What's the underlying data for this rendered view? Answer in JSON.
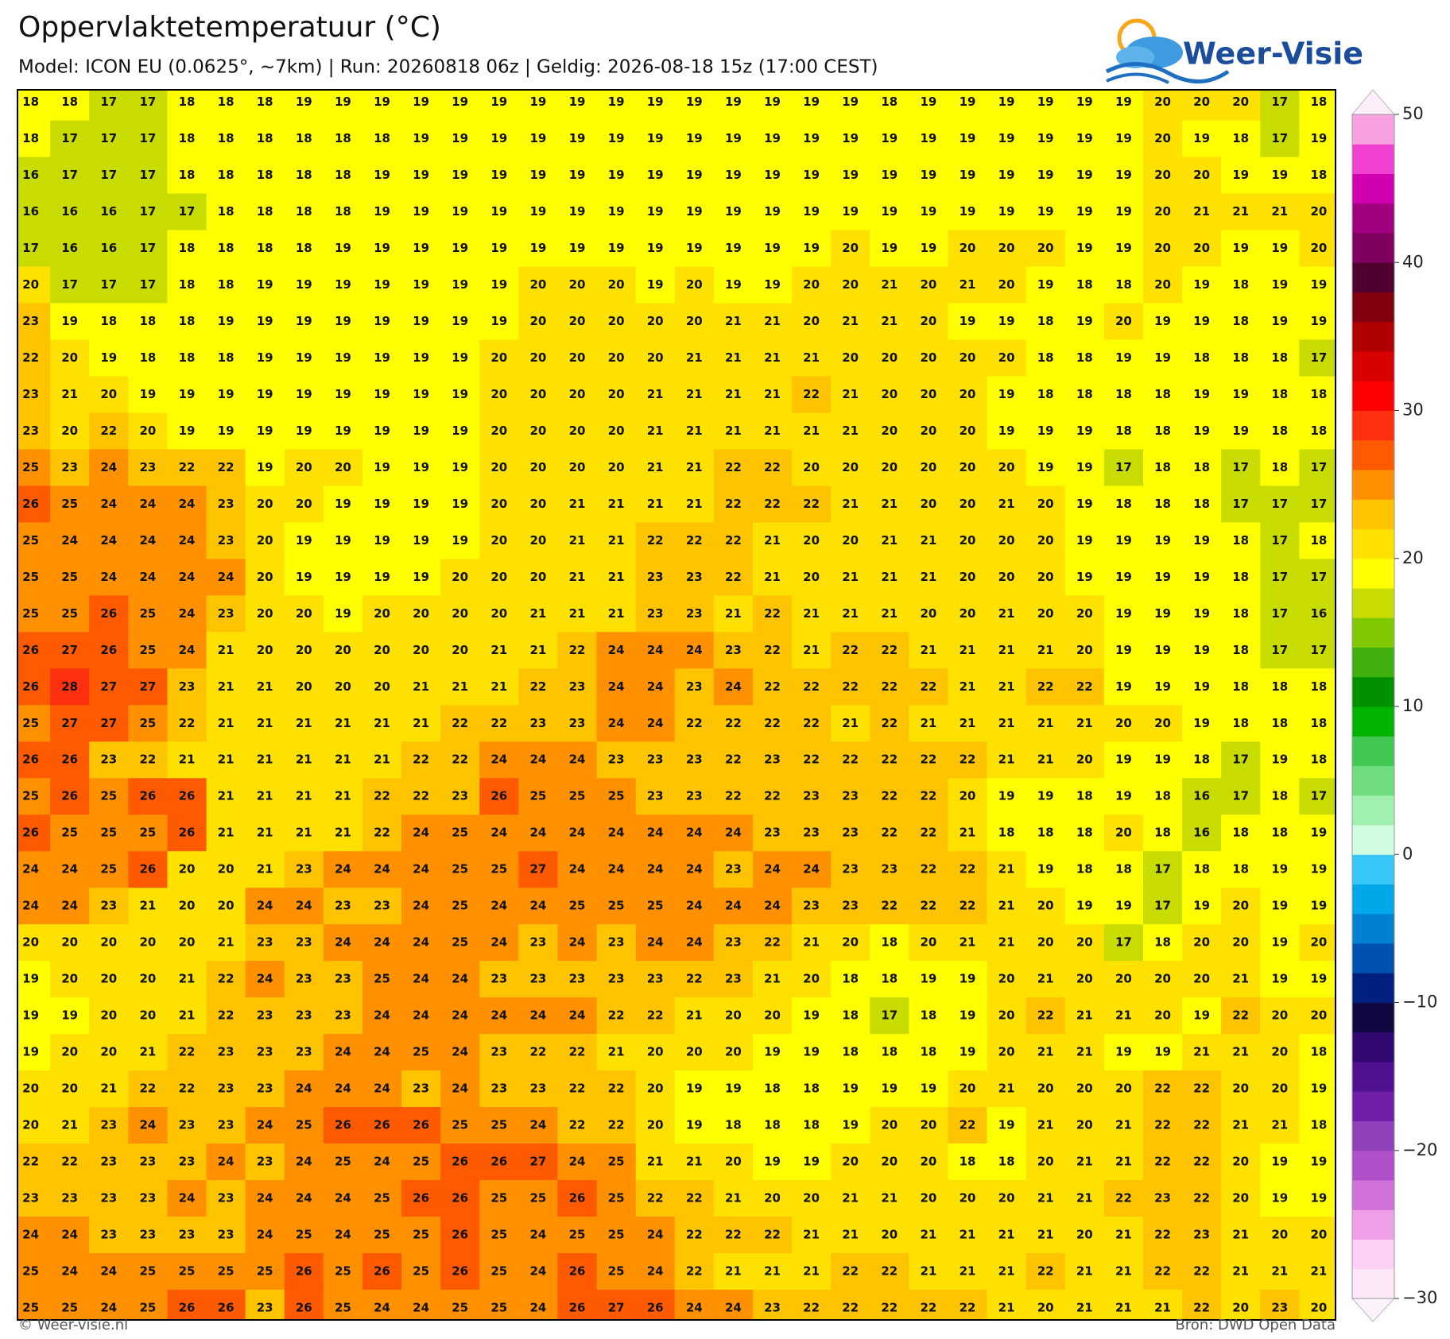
{
  "header": {
    "title": "Oppervlaktetemperatuur (°C)",
    "subtitle": "Model: ICON EU (0.0625°, ~7km)  |  Run: 20260818 06z  |  Geldig: 2026-08-18 15z (17:00 CEST)"
  },
  "logo": "Weer-Visie",
  "grid": {
    "rows": [
      [
        18,
        18,
        17,
        17,
        18,
        18,
        18,
        19,
        19,
        19,
        19,
        19,
        19,
        19,
        19,
        19,
        19,
        19,
        19,
        19,
        19,
        19,
        18,
        19,
        19,
        19,
        19,
        19,
        19,
        20,
        20,
        20,
        17,
        18
      ],
      [
        18,
        17,
        17,
        17,
        18,
        18,
        18,
        18,
        18,
        18,
        19,
        19,
        19,
        19,
        19,
        19,
        19,
        19,
        19,
        19,
        19,
        19,
        19,
        19,
        19,
        19,
        19,
        19,
        19,
        20,
        19,
        18,
        17,
        19
      ],
      [
        16,
        17,
        17,
        17,
        18,
        18,
        18,
        18,
        18,
        19,
        19,
        19,
        19,
        19,
        19,
        19,
        19,
        19,
        19,
        19,
        19,
        19,
        19,
        19,
        19,
        19,
        19,
        19,
        19,
        20,
        20,
        19,
        19,
        18
      ],
      [
        16,
        16,
        16,
        17,
        17,
        18,
        18,
        18,
        18,
        19,
        19,
        19,
        19,
        19,
        19,
        19,
        19,
        19,
        19,
        19,
        19,
        19,
        19,
        19,
        19,
        19,
        19,
        19,
        19,
        20,
        21,
        21,
        21,
        20
      ],
      [
        17,
        16,
        16,
        17,
        18,
        18,
        18,
        18,
        19,
        19,
        19,
        19,
        19,
        19,
        19,
        19,
        19,
        19,
        19,
        19,
        19,
        20,
        19,
        19,
        20,
        20,
        20,
        19,
        19,
        20,
        20,
        19,
        19,
        20
      ],
      [
        20,
        17,
        17,
        17,
        18,
        18,
        19,
        19,
        19,
        19,
        19,
        19,
        19,
        20,
        20,
        20,
        19,
        20,
        19,
        19,
        20,
        20,
        21,
        20,
        21,
        20,
        19,
        18,
        18,
        20,
        19,
        18,
        19,
        19
      ],
      [
        23,
        19,
        18,
        18,
        18,
        19,
        19,
        19,
        19,
        19,
        19,
        19,
        19,
        20,
        20,
        20,
        20,
        20,
        21,
        21,
        20,
        21,
        21,
        20,
        19,
        19,
        18,
        19,
        20,
        19,
        19,
        18,
        19,
        19
      ],
      [
        22,
        20,
        19,
        18,
        18,
        18,
        19,
        19,
        19,
        19,
        19,
        19,
        20,
        20,
        20,
        20,
        20,
        21,
        21,
        21,
        21,
        20,
        20,
        20,
        20,
        20,
        18,
        18,
        19,
        19,
        18,
        18,
        18,
        17
      ],
      [
        23,
        21,
        20,
        19,
        19,
        19,
        19,
        19,
        19,
        19,
        19,
        19,
        20,
        20,
        20,
        20,
        21,
        21,
        21,
        21,
        22,
        21,
        20,
        20,
        20,
        19,
        18,
        18,
        18,
        18,
        19,
        19,
        18,
        18
      ],
      [
        23,
        20,
        22,
        20,
        19,
        19,
        19,
        19,
        19,
        19,
        19,
        19,
        20,
        20,
        20,
        20,
        21,
        21,
        21,
        21,
        21,
        21,
        20,
        20,
        20,
        19,
        19,
        19,
        18,
        18,
        19,
        19,
        18,
        18
      ],
      [
        25,
        23,
        24,
        23,
        22,
        22,
        19,
        20,
        20,
        19,
        19,
        19,
        20,
        20,
        20,
        20,
        21,
        21,
        22,
        22,
        20,
        20,
        20,
        20,
        20,
        20,
        19,
        19,
        17,
        18,
        18,
        17,
        18,
        17
      ],
      [
        26,
        25,
        24,
        24,
        24,
        23,
        20,
        20,
        19,
        19,
        19,
        19,
        20,
        20,
        21,
        21,
        21,
        21,
        22,
        22,
        22,
        21,
        21,
        20,
        20,
        21,
        20,
        19,
        18,
        18,
        18,
        17,
        17,
        17
      ],
      [
        25,
        24,
        24,
        24,
        24,
        23,
        20,
        19,
        19,
        19,
        19,
        19,
        20,
        20,
        21,
        21,
        22,
        22,
        22,
        21,
        20,
        20,
        21,
        21,
        20,
        20,
        20,
        19,
        19,
        19,
        19,
        18,
        17,
        18
      ],
      [
        25,
        25,
        24,
        24,
        24,
        24,
        20,
        19,
        19,
        19,
        19,
        20,
        20,
        20,
        21,
        21,
        23,
        23,
        22,
        21,
        20,
        21,
        21,
        21,
        20,
        20,
        20,
        19,
        19,
        19,
        19,
        18,
        17,
        17
      ],
      [
        25,
        25,
        26,
        25,
        24,
        23,
        20,
        20,
        19,
        20,
        20,
        20,
        20,
        21,
        21,
        21,
        23,
        23,
        21,
        22,
        21,
        21,
        21,
        20,
        20,
        21,
        20,
        20,
        19,
        19,
        19,
        18,
        17,
        16
      ],
      [
        26,
        27,
        26,
        25,
        24,
        21,
        20,
        20,
        20,
        20,
        20,
        20,
        21,
        21,
        22,
        24,
        24,
        24,
        23,
        22,
        21,
        22,
        22,
        21,
        21,
        21,
        21,
        20,
        19,
        19,
        19,
        18,
        17,
        17
      ],
      [
        26,
        28,
        27,
        27,
        23,
        21,
        21,
        20,
        20,
        20,
        21,
        21,
        21,
        22,
        23,
        24,
        24,
        23,
        24,
        22,
        22,
        22,
        22,
        22,
        21,
        21,
        22,
        22,
        19,
        19,
        19,
        18,
        18,
        18
      ],
      [
        25,
        27,
        27,
        25,
        22,
        21,
        21,
        21,
        21,
        21,
        21,
        22,
        22,
        23,
        23,
        24,
        24,
        22,
        22,
        22,
        22,
        21,
        22,
        21,
        21,
        21,
        21,
        21,
        20,
        20,
        19,
        18,
        18,
        18
      ],
      [
        26,
        26,
        23,
        22,
        21,
        21,
        21,
        21,
        21,
        21,
        22,
        22,
        24,
        24,
        24,
        23,
        23,
        23,
        22,
        23,
        22,
        22,
        22,
        22,
        22,
        21,
        21,
        20,
        19,
        19,
        18,
        17,
        19,
        18
      ],
      [
        25,
        26,
        25,
        26,
        26,
        21,
        21,
        21,
        21,
        22,
        22,
        23,
        26,
        25,
        25,
        25,
        23,
        23,
        22,
        22,
        23,
        23,
        22,
        22,
        20,
        19,
        19,
        18,
        19,
        18,
        16,
        17,
        18,
        17
      ],
      [
        26,
        25,
        25,
        25,
        26,
        21,
        21,
        21,
        21,
        22,
        24,
        25,
        24,
        24,
        24,
        24,
        24,
        24,
        24,
        23,
        23,
        23,
        22,
        22,
        21,
        18,
        18,
        18,
        20,
        18,
        16,
        18,
        18,
        19
      ],
      [
        24,
        24,
        25,
        26,
        20,
        20,
        21,
        23,
        24,
        24,
        24,
        25,
        25,
        27,
        24,
        24,
        24,
        24,
        23,
        24,
        24,
        23,
        23,
        22,
        22,
        21,
        19,
        18,
        18,
        17,
        18,
        18,
        19,
        19
      ],
      [
        24,
        24,
        23,
        21,
        20,
        20,
        24,
        24,
        23,
        23,
        24,
        25,
        24,
        24,
        25,
        25,
        25,
        24,
        24,
        24,
        23,
        23,
        22,
        22,
        22,
        21,
        20,
        19,
        19,
        17,
        19,
        20,
        19,
        19
      ],
      [
        20,
        20,
        20,
        20,
        20,
        21,
        23,
        23,
        24,
        24,
        24,
        25,
        24,
        23,
        24,
        23,
        24,
        24,
        23,
        22,
        21,
        20,
        18,
        20,
        21,
        21,
        20,
        20,
        17,
        18,
        20,
        20,
        19,
        20
      ],
      [
        19,
        20,
        20,
        20,
        21,
        22,
        24,
        23,
        23,
        25,
        24,
        24,
        23,
        23,
        23,
        23,
        23,
        22,
        23,
        21,
        20,
        18,
        18,
        19,
        19,
        20,
        21,
        20,
        20,
        20,
        20,
        21,
        19,
        19
      ],
      [
        19,
        19,
        20,
        20,
        21,
        22,
        23,
        23,
        23,
        24,
        24,
        24,
        24,
        24,
        24,
        22,
        22,
        21,
        20,
        20,
        19,
        18,
        17,
        18,
        19,
        20,
        22,
        21,
        21,
        20,
        19,
        22,
        20,
        20
      ],
      [
        19,
        20,
        20,
        21,
        22,
        23,
        23,
        23,
        24,
        24,
        25,
        24,
        23,
        22,
        22,
        21,
        20,
        20,
        20,
        19,
        19,
        18,
        18,
        18,
        19,
        20,
        21,
        21,
        19,
        19,
        21,
        21,
        20,
        18
      ],
      [
        20,
        20,
        21,
        22,
        22,
        23,
        23,
        24,
        24,
        24,
        23,
        24,
        23,
        23,
        22,
        22,
        20,
        19,
        19,
        18,
        18,
        19,
        19,
        19,
        20,
        21,
        20,
        20,
        20,
        22,
        22,
        20,
        20,
        19
      ],
      [
        20,
        21,
        23,
        24,
        23,
        23,
        24,
        25,
        26,
        26,
        26,
        25,
        25,
        24,
        22,
        22,
        20,
        19,
        18,
        18,
        18,
        19,
        20,
        20,
        22,
        19,
        21,
        20,
        21,
        22,
        22,
        21,
        21,
        18
      ],
      [
        22,
        22,
        23,
        23,
        23,
        24,
        23,
        24,
        25,
        24,
        25,
        26,
        26,
        27,
        24,
        25,
        21,
        21,
        20,
        19,
        19,
        20,
        20,
        20,
        18,
        18,
        20,
        21,
        21,
        22,
        22,
        20,
        19,
        19
      ],
      [
        23,
        23,
        23,
        23,
        24,
        23,
        24,
        24,
        24,
        25,
        26,
        26,
        25,
        25,
        26,
        25,
        22,
        22,
        21,
        20,
        20,
        21,
        21,
        20,
        20,
        20,
        21,
        21,
        22,
        23,
        22,
        20,
        19,
        19
      ],
      [
        24,
        24,
        23,
        23,
        23,
        23,
        24,
        25,
        24,
        25,
        25,
        26,
        25,
        24,
        25,
        25,
        24,
        22,
        22,
        22,
        21,
        21,
        20,
        21,
        21,
        21,
        21,
        20,
        21,
        22,
        23,
        21,
        20,
        20
      ],
      [
        25,
        24,
        24,
        25,
        25,
        25,
        25,
        26,
        25,
        26,
        25,
        26,
        25,
        24,
        26,
        25,
        24,
        22,
        21,
        21,
        21,
        22,
        22,
        21,
        21,
        21,
        22,
        21,
        21,
        22,
        22,
        21,
        21,
        21
      ],
      [
        25,
        25,
        24,
        25,
        26,
        26,
        23,
        26,
        25,
        24,
        24,
        25,
        25,
        24,
        26,
        27,
        26,
        24,
        24,
        23,
        22,
        22,
        22,
        22,
        22,
        21,
        20,
        21,
        21,
        21,
        22,
        20,
        23,
        20
      ]
    ]
  },
  "colorbar": {
    "range": [
      -30,
      50
    ],
    "ticks": [
      50,
      40,
      30,
      20,
      10,
      0,
      {
        "value": -10,
        "label": "−10"
      },
      {
        "value": -20,
        "label": "−20"
      },
      {
        "value": -30,
        "label": "−30"
      }
    ],
    "colors": [
      "#fde8fa",
      "#fcd0f4",
      "#f0a0e8",
      "#d070d8",
      "#b050c8",
      "#9040b8",
      "#7020a8",
      "#501090",
      "#300870",
      "#100840",
      "#002080",
      "#0050b0",
      "#0080d0",
      "#00a8e8",
      "#38c8f8",
      "#d0fce0",
      "#a0f0b0",
      "#70dc80",
      "#40c850",
      "#00b400",
      "#009000",
      "#40b010",
      "#80c800",
      "#c8dc00",
      "#ffff00",
      "#ffe100",
      "#ffc400",
      "#ff9000",
      "#ff5a00",
      "#ff3010",
      "#ff0000",
      "#d80000",
      "#b00000",
      "#800010",
      "#500030",
      "#800060",
      "#a00080",
      "#d000b0",
      "#f040d0",
      "#f8a0e0"
    ]
  },
  "footer": {
    "left": "© Weer-visie.nl",
    "right": "Bron: DWD Open Data"
  }
}
